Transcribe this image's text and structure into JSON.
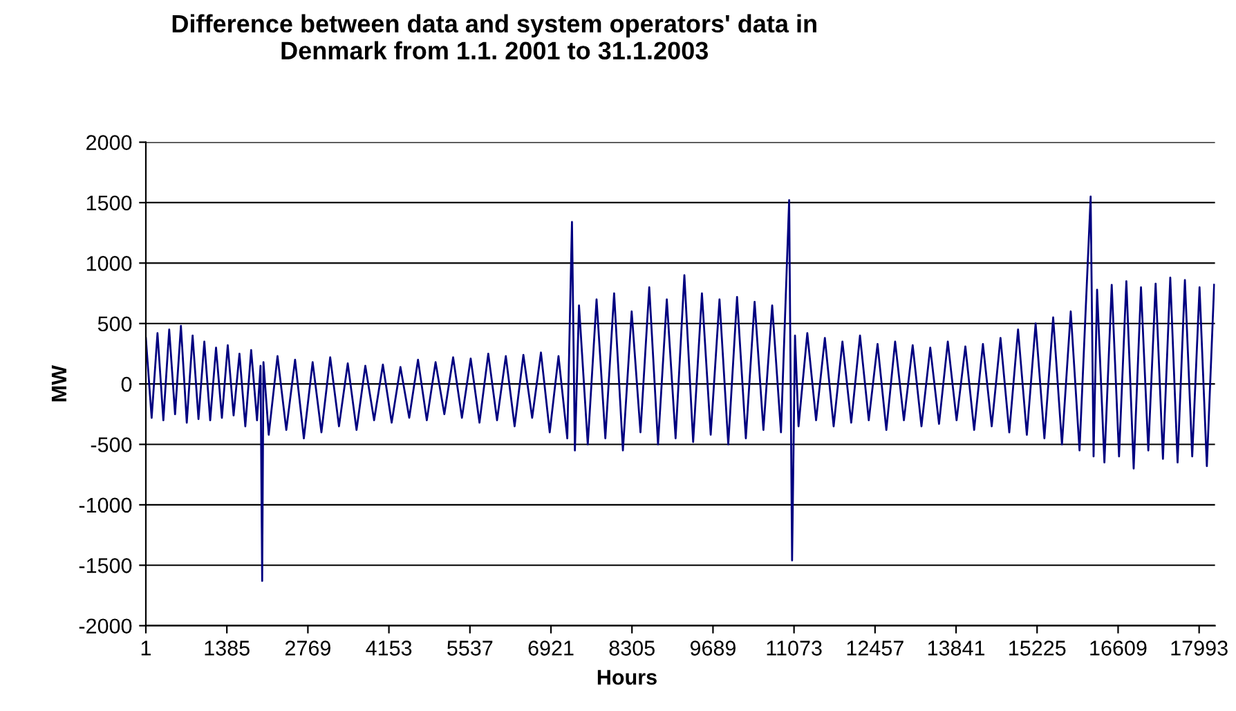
{
  "chart_data": {
    "type": "line",
    "title": "Difference between data and system operators' data in\nDenmark from 1.1. 2001 to 31.1.2003",
    "xlabel": "Hours",
    "ylabel": "MW",
    "x": [
      1,
      100,
      200,
      300,
      400,
      500,
      600,
      700,
      800,
      900,
      1000,
      1100,
      1200,
      1300,
      1400,
      1500,
      1600,
      1700,
      1800,
      1900,
      1960,
      1988,
      2010,
      2100,
      2250,
      2400,
      2550,
      2700,
      2850,
      3000,
      3150,
      3300,
      3450,
      3600,
      3750,
      3900,
      4050,
      4200,
      4350,
      4500,
      4650,
      4800,
      4950,
      5100,
      5250,
      5400,
      5550,
      5700,
      5850,
      6000,
      6150,
      6300,
      6450,
      6600,
      6750,
      6900,
      7050,
      7200,
      7280,
      7330,
      7400,
      7550,
      7700,
      7850,
      8000,
      8150,
      8300,
      8450,
      8600,
      8750,
      8900,
      9050,
      9200,
      9350,
      9500,
      9650,
      9800,
      9950,
      10100,
      10250,
      10400,
      10550,
      10700,
      10850,
      10990,
      11040,
      11090,
      11150,
      11300,
      11450,
      11600,
      11750,
      11900,
      12050,
      12200,
      12350,
      12500,
      12650,
      12800,
      12950,
      13100,
      13250,
      13400,
      13550,
      13700,
      13850,
      14000,
      14150,
      14300,
      14450,
      14600,
      14750,
      14900,
      15050,
      15200,
      15350,
      15500,
      15650,
      15800,
      15950,
      16140,
      16190,
      16250,
      16375,
      16500,
      16625,
      16750,
      16875,
      17000,
      17125,
      17250,
      17375,
      17500,
      17625,
      17750,
      17875,
      18000,
      18125,
      18250
    ],
    "series": [
      {
        "color": "#000080",
        "values": [
          380,
          -280,
          420,
          -300,
          450,
          -250,
          480,
          -320,
          400,
          -290,
          350,
          -300,
          300,
          -280,
          320,
          -260,
          250,
          -350,
          280,
          -300,
          150,
          -1630,
          180,
          -420,
          230,
          -380,
          200,
          -450,
          180,
          -400,
          220,
          -350,
          170,
          -380,
          150,
          -300,
          160,
          -320,
          140,
          -280,
          200,
          -300,
          180,
          -250,
          220,
          -280,
          210,
          -320,
          250,
          -300,
          230,
          -350,
          240,
          -280,
          260,
          -400,
          230,
          -450,
          1340,
          -550,
          650,
          -500,
          700,
          -450,
          750,
          -550,
          600,
          -400,
          800,
          -500,
          700,
          -450,
          900,
          -480,
          750,
          -420,
          700,
          -500,
          720,
          -450,
          680,
          -380,
          650,
          -400,
          1520,
          -1460,
          400,
          -350,
          420,
          -300,
          380,
          -350,
          350,
          -320,
          400,
          -300,
          330,
          -380,
          350,
          -300,
          320,
          -350,
          300,
          -330,
          350,
          -300,
          310,
          -380,
          330,
          -350,
          380,
          -400,
          450,
          -420,
          500,
          -450,
          550,
          -500,
          600,
          -550,
          1550,
          -600,
          780,
          -650,
          820,
          -600,
          850,
          -700,
          800,
          -550,
          830,
          -620,
          880,
          -650,
          860,
          -600,
          800,
          -680,
          820
        ]
      }
    ],
    "xlim": [
      1,
      18264
    ],
    "xticks": [
      1,
      1385,
      2769,
      4153,
      5537,
      6921,
      8305,
      9689,
      11073,
      12457,
      13841,
      15225,
      16609,
      17993
    ],
    "ylim": [
      -2000,
      2000
    ],
    "yticks": [
      -2000,
      -1500,
      -1000,
      -500,
      0,
      500,
      1000,
      1500,
      2000
    ],
    "grid": "y",
    "legend": false
  }
}
